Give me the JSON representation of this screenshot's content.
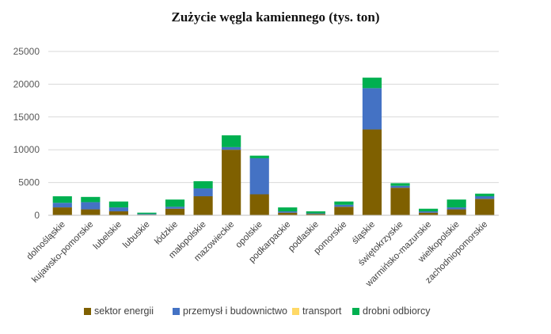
{
  "chart_data": {
    "type": "bar",
    "stacked": true,
    "title": "Zużycie węgla kamiennego (tys. ton)",
    "xlabel": "",
    "ylabel": "",
    "ylim": [
      0,
      25000
    ],
    "yticks": [
      "0",
      "5000",
      "10000",
      "15000",
      "20000",
      "25000"
    ],
    "grid": true,
    "legend_position": "bottom",
    "categories": [
      "dolnośląskie",
      "kujawsko-pomorskie",
      "lubelskie",
      "lubuskie",
      "łódzkie",
      "małopolskie",
      "mazowieckie",
      "opolskie",
      "podkarpackie",
      "podlaskie",
      "pomorskie",
      "śląskie",
      "świętokrzyskie",
      "warmińsko-mazurskie",
      "wielkopolskie",
      "zachodniopomorskie"
    ],
    "series": [
      {
        "name": "sektor energii",
        "color": "#7F6000",
        "values": [
          1200,
          900,
          600,
          100,
          1000,
          2900,
          10000,
          3200,
          400,
          200,
          1300,
          13100,
          4200,
          400,
          900,
          2500
        ]
      },
      {
        "name": "przemysł i budownictwo",
        "color": "#4472C4",
        "values": [
          700,
          1100,
          600,
          100,
          300,
          1200,
          400,
          5500,
          200,
          100,
          300,
          6300,
          300,
          200,
          300,
          400
        ]
      },
      {
        "name": "transport",
        "color": "#FFD966",
        "values": [
          0,
          0,
          0,
          0,
          0,
          0,
          0,
          0,
          0,
          0,
          0,
          0,
          0,
          0,
          0,
          0
        ]
      },
      {
        "name": "drobni odbiorcy",
        "color": "#00B050",
        "values": [
          1000,
          800,
          900,
          200,
          1100,
          1100,
          1800,
          400,
          600,
          300,
          500,
          1600,
          400,
          400,
          1200,
          400
        ]
      }
    ]
  }
}
